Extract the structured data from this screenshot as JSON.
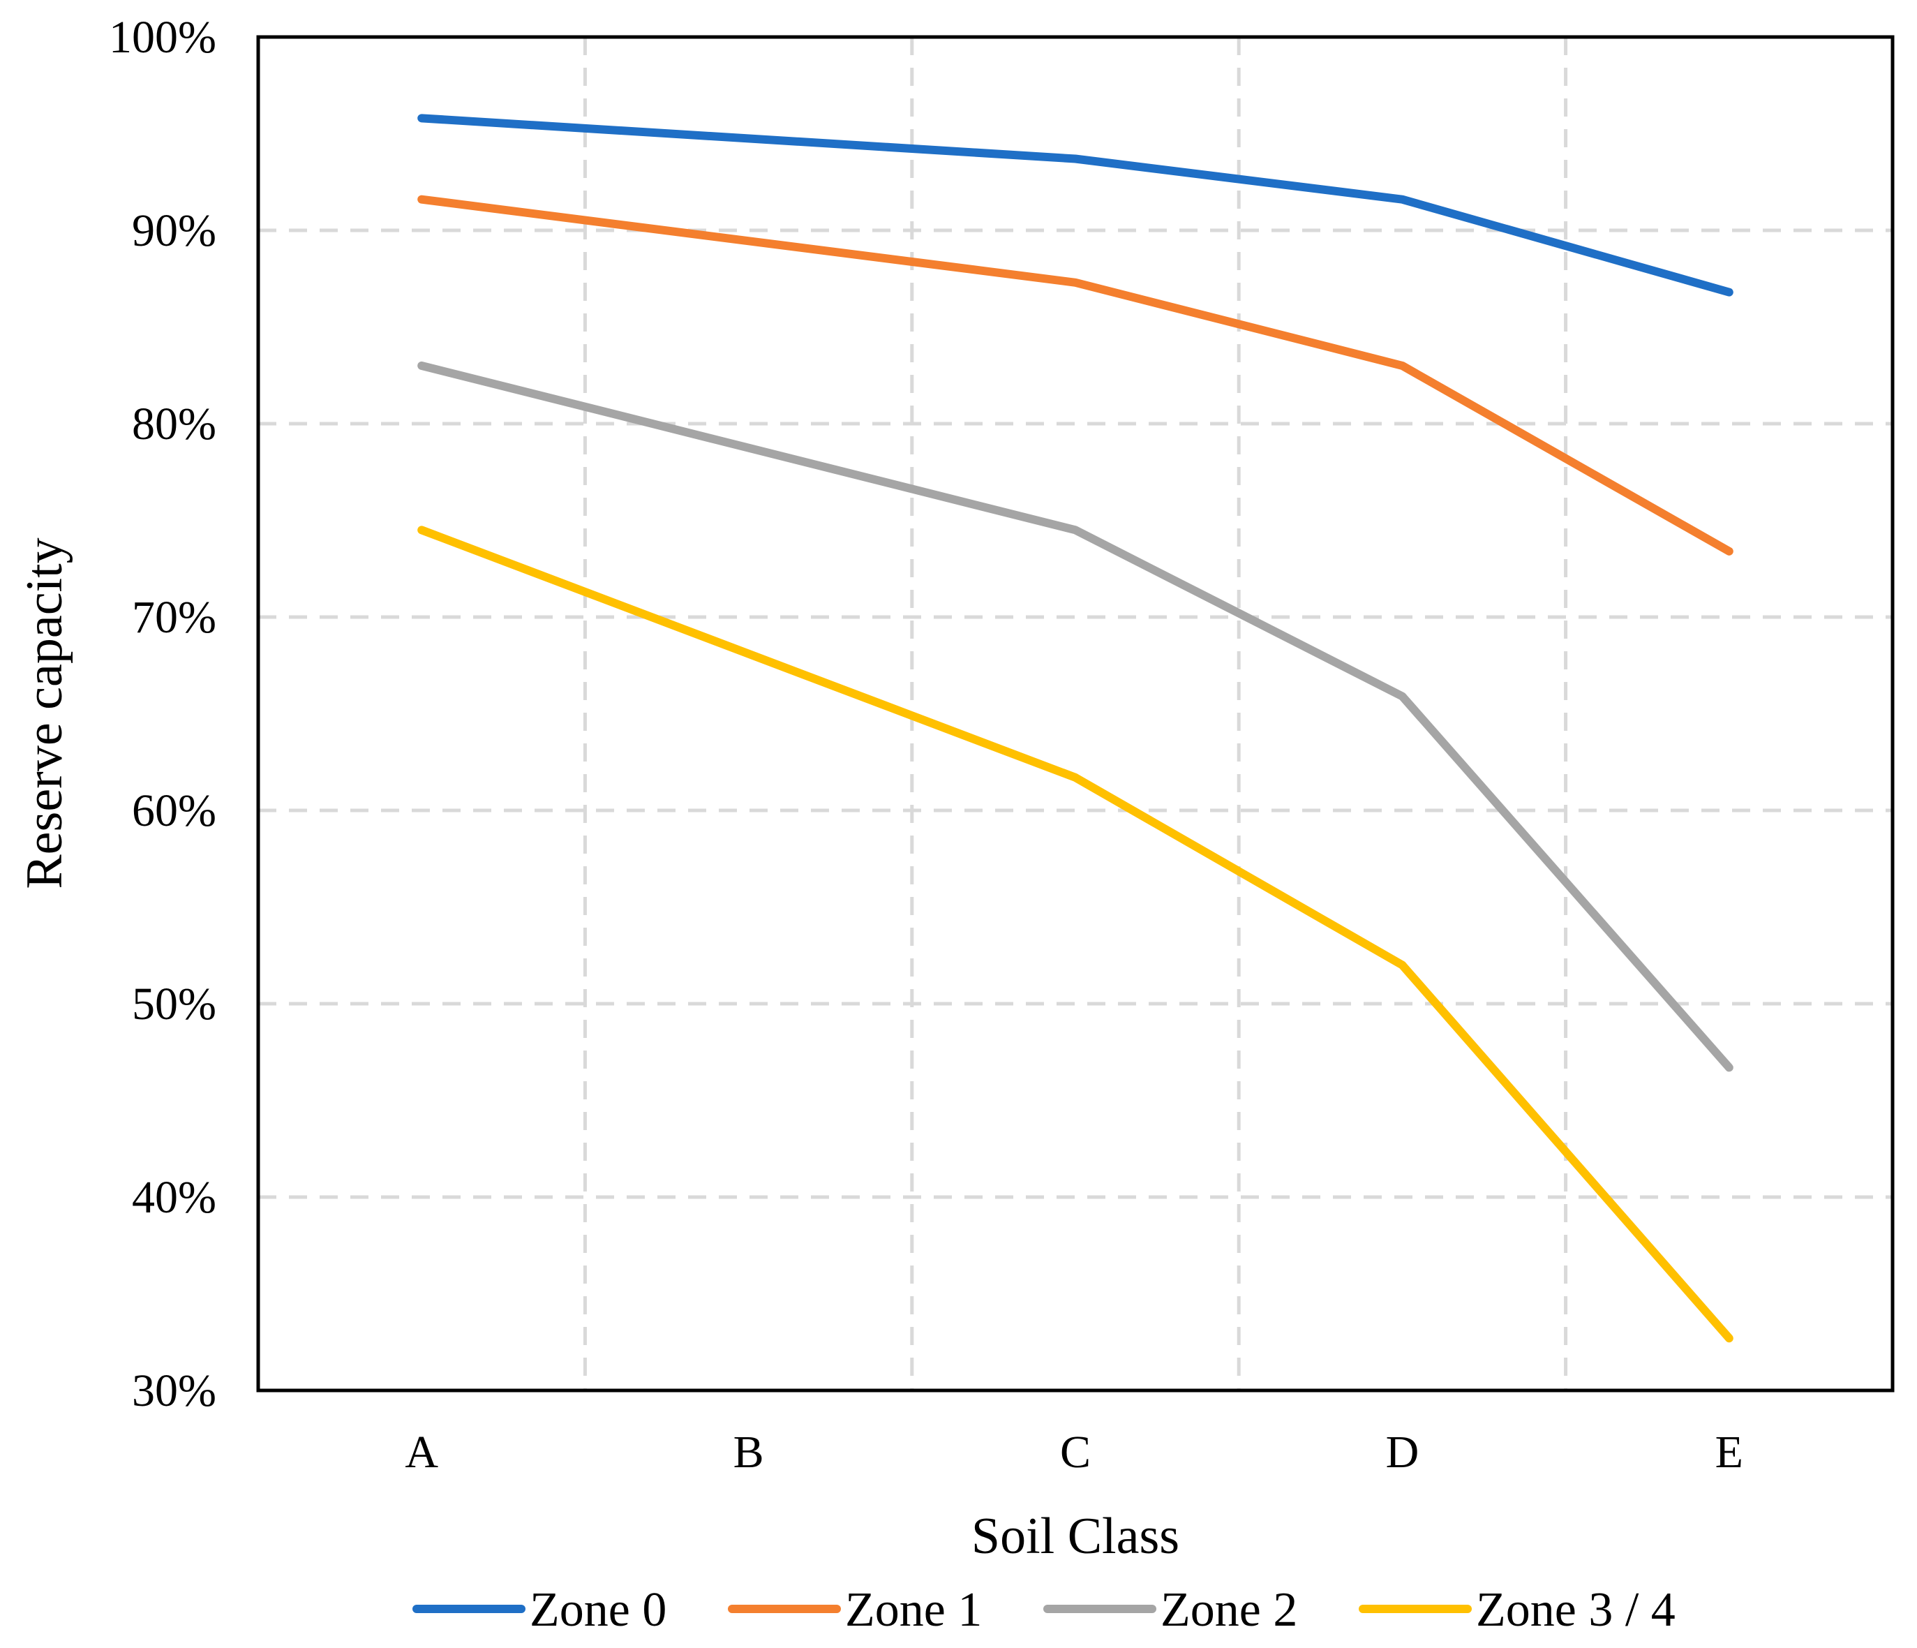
{
  "chart_data": {
    "type": "line",
    "title": "",
    "xlabel": "Soil Class",
    "ylabel": "Reserve capacity",
    "categories": [
      "A",
      "B",
      "C",
      "D",
      "E"
    ],
    "ylim": [
      0.3,
      1.0
    ],
    "yticks": [
      0.3,
      0.4,
      0.5,
      0.6,
      0.7,
      0.8,
      0.9,
      1.0
    ],
    "ytick_labels": [
      "30%",
      "40%",
      "50%",
      "60%",
      "70%",
      "80%",
      "90%",
      "100%"
    ],
    "grid": true,
    "legend_position": "bottom",
    "series": [
      {
        "name": "Zone 0",
        "color": "#1f6fc6",
        "values": [
          0.958,
          null,
          0.937,
          0.916,
          0.868
        ]
      },
      {
        "name": "Zone 1",
        "color": "#f47f2e",
        "values": [
          0.916,
          null,
          0.873,
          0.83,
          0.734
        ]
      },
      {
        "name": "Zone 2",
        "color": "#a5a5a5",
        "values": [
          0.83,
          null,
          0.745,
          0.659,
          0.467
        ]
      },
      {
        "name": "Zone 3 / 4",
        "color": "#ffc000",
        "values": [
          0.745,
          null,
          0.617,
          0.52,
          0.327
        ]
      }
    ]
  }
}
